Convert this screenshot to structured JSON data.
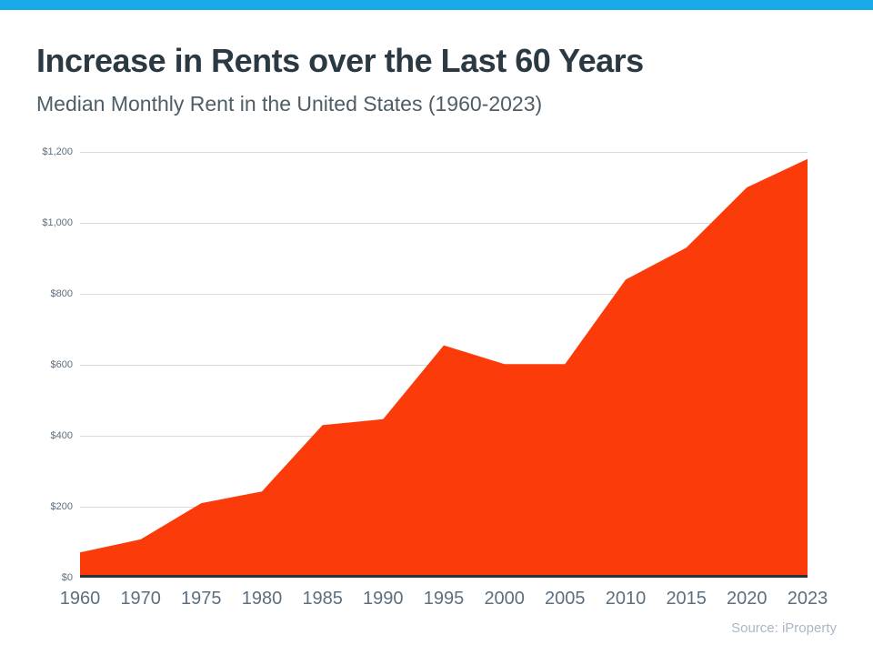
{
  "page": {
    "title": "Increase in Rents over the Last 60 Years",
    "subtitle": "Median Monthly Rent in the United States (1960-2023)",
    "source": "Source: iProperty",
    "accent_bar_color": "#18AAEB",
    "area_color": "#FB3C0A",
    "title_color": "#2B3943",
    "subtitle_color": "#4E5D66"
  },
  "chart_data": {
    "type": "area",
    "title": "Increase in Rents over the Last 60 Years",
    "subtitle": "Median Monthly Rent in the United States (1960-2023)",
    "categories": [
      "1960",
      "1970",
      "1975",
      "1980",
      "1985",
      "1990",
      "1995",
      "2000",
      "2005",
      "2010",
      "2015",
      "2020",
      "2023"
    ],
    "values": [
      71,
      108,
      210,
      243,
      430,
      447,
      655,
      602,
      602,
      840,
      930,
      1100,
      1180
    ],
    "xlabel": "",
    "ylabel": "",
    "ylim": [
      0,
      1200
    ],
    "ytick_step": 200,
    "ytick_labels": [
      "$0",
      "$200",
      "$400",
      "$600",
      "$800",
      "$1,000",
      "$1,200"
    ],
    "grid": true,
    "legend": false,
    "area_color": "#FB3C0A",
    "source": "Source: iProperty"
  }
}
